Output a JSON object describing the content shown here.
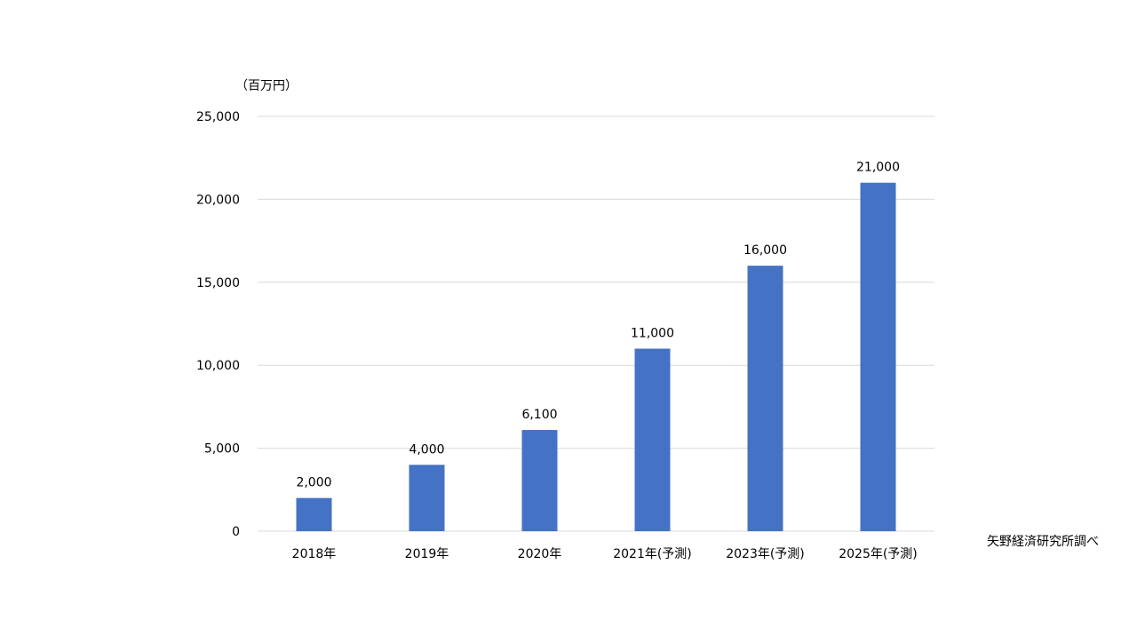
{
  "chart_data": {
    "type": "bar",
    "title": "",
    "xlabel": "",
    "ylabel": "（百万円）",
    "categories": [
      "2018年",
      "2019年",
      "2020年",
      "2021年(予測)",
      "2023年(予測)",
      "2025年(予測)"
    ],
    "values": [
      2000,
      4000,
      6100,
      11000,
      16000,
      21000
    ],
    "data_labels": [
      "2,000",
      "4,000",
      "6,100",
      "11,000",
      "16,000",
      "21,000"
    ],
    "ylim": [
      0,
      25000
    ],
    "yticks": [
      0,
      5000,
      10000,
      15000,
      20000,
      25000
    ],
    "ytick_labels": [
      "0",
      "5,000",
      "10,000",
      "15,000",
      "20,000",
      "25,000"
    ],
    "grid": true,
    "legend": "none",
    "bar_color": "#4472c4",
    "source": "矢野経済研究所調べ"
  }
}
